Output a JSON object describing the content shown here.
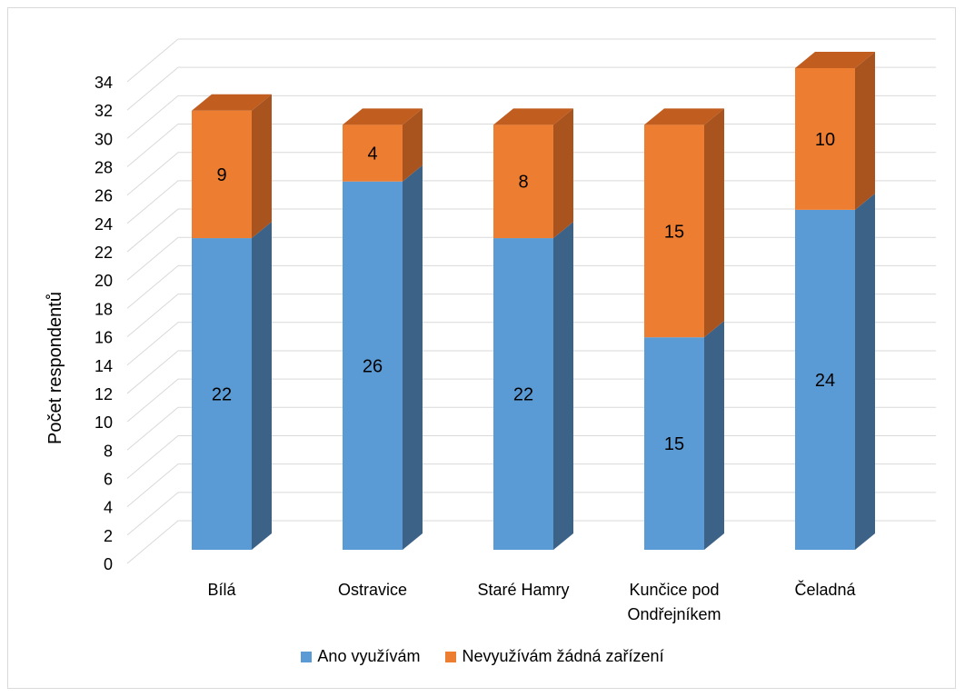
{
  "chart_data": {
    "type": "bar",
    "stacked": true,
    "three_d": true,
    "ylabel": "Počet respondentů",
    "ylim": [
      0,
      34
    ],
    "y_ticks": [
      0,
      2,
      4,
      6,
      8,
      10,
      12,
      14,
      16,
      18,
      20,
      22,
      24,
      26,
      28,
      30,
      32,
      34
    ],
    "grid": true,
    "legend_position": "bottom",
    "categories": [
      [
        "Bílá"
      ],
      [
        "Ostravice"
      ],
      [
        "Staré Hamry"
      ],
      [
        "Kunčice pod",
        "Ondřejníkem"
      ],
      [
        "Čeladná"
      ]
    ],
    "series": [
      {
        "name": "Ano využívám",
        "color": "#5b9bd5",
        "side_color": "#3c6288",
        "values": [
          22,
          26,
          22,
          15,
          24
        ]
      },
      {
        "name": "Nevyužívám žádná zařízení",
        "color": "#ed7d31",
        "side_color": "#a9541f",
        "top_color": "#c05d1f",
        "values": [
          9,
          4,
          8,
          15,
          10
        ]
      }
    ]
  }
}
